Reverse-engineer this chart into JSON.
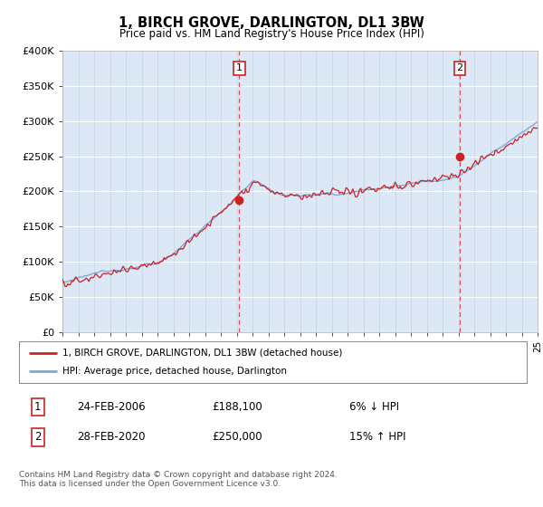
{
  "title": "1, BIRCH GROVE, DARLINGTON, DL1 3BW",
  "subtitle": "Price paid vs. HM Land Registry's House Price Index (HPI)",
  "ylim": [
    0,
    400000
  ],
  "yticks": [
    0,
    50000,
    100000,
    150000,
    200000,
    250000,
    300000,
    350000,
    400000
  ],
  "ytick_labels": [
    "£0",
    "£50K",
    "£100K",
    "£150K",
    "£200K",
    "£250K",
    "£300K",
    "£350K",
    "£400K"
  ],
  "hpi_color": "#7aaadd",
  "price_color": "#cc2222",
  "sale1_idx": 134,
  "sale1_price": 188100,
  "sale2_idx": 301,
  "sale2_price": 250000,
  "legend_line1": "1, BIRCH GROVE, DARLINGTON, DL1 3BW (detached house)",
  "legend_line2": "HPI: Average price, detached house, Darlington",
  "footer": "Contains HM Land Registry data © Crown copyright and database right 2024.\nThis data is licensed under the Open Government Licence v3.0.",
  "table_row1": [
    "1",
    "24-FEB-2006",
    "£188,100",
    "6% ↓ HPI"
  ],
  "table_row2": [
    "2",
    "28-FEB-2020",
    "£250,000",
    "15% ↑ HPI"
  ],
  "bg_color": "#ffffff",
  "plot_bg": "#dce8f5",
  "n_months": 361,
  "year_start": 1995,
  "year_end": 2025
}
